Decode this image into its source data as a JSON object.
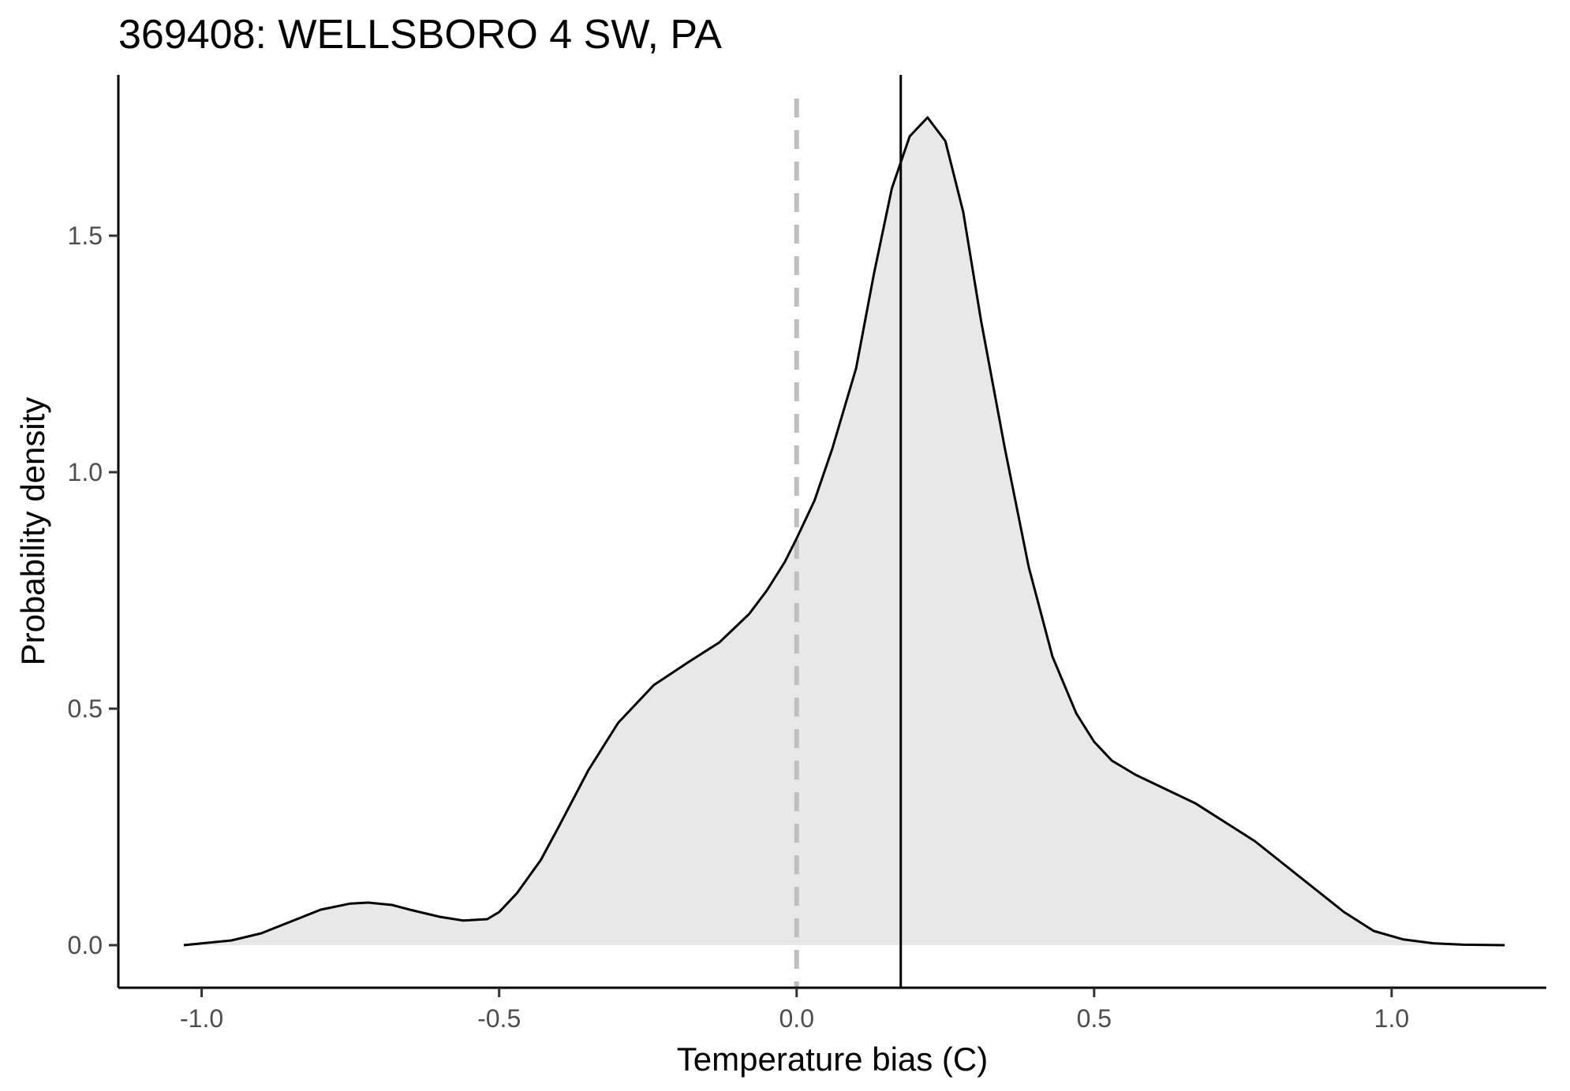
{
  "chart_data": {
    "type": "area",
    "title": "369408: WELLSBORO 4 SW, PA",
    "xlabel": "Temperature bias (C)",
    "ylabel": "Probability density",
    "xlim": [
      -1.14,
      1.26
    ],
    "ylim": [
      -0.09,
      1.84
    ],
    "x_ticks": [
      {
        "value": -1.0,
        "label": "-1.0"
      },
      {
        "value": -0.5,
        "label": "-0.5"
      },
      {
        "value": 0.0,
        "label": "0.0"
      },
      {
        "value": 0.5,
        "label": "0.5"
      },
      {
        "value": 1.0,
        "label": "1.0"
      }
    ],
    "y_ticks": [
      {
        "value": 0.0,
        "label": "0.0"
      },
      {
        "value": 0.5,
        "label": "0.5"
      },
      {
        "value": 1.0,
        "label": "1.0"
      },
      {
        "value": 1.5,
        "label": "1.5"
      }
    ],
    "grid": false,
    "legend": "none",
    "series": [
      {
        "x": [
          -1.03,
          -0.95,
          -0.9,
          -0.85,
          -0.8,
          -0.75,
          -0.72,
          -0.68,
          -0.65,
          -0.6,
          -0.56,
          -0.52,
          -0.5,
          -0.47,
          -0.43,
          -0.4,
          -0.35,
          -0.3,
          -0.27,
          -0.24,
          -0.21,
          -0.18,
          -0.13,
          -0.08,
          -0.05,
          -0.02,
          0.0,
          0.03,
          0.06,
          0.1,
          0.13,
          0.16,
          0.19,
          0.22,
          0.25,
          0.28,
          0.31,
          0.35,
          0.39,
          0.43,
          0.47,
          0.5,
          0.53,
          0.57,
          0.62,
          0.67,
          0.72,
          0.77,
          0.82,
          0.87,
          0.92,
          0.97,
          1.02,
          1.07,
          1.12,
          1.19
        ],
        "y": [
          0.0,
          0.01,
          0.025,
          0.05,
          0.075,
          0.088,
          0.09,
          0.085,
          0.075,
          0.06,
          0.052,
          0.055,
          0.07,
          0.11,
          0.18,
          0.25,
          0.37,
          0.47,
          0.51,
          0.55,
          0.575,
          0.6,
          0.64,
          0.7,
          0.75,
          0.81,
          0.86,
          0.94,
          1.05,
          1.22,
          1.42,
          1.6,
          1.71,
          1.75,
          1.7,
          1.55,
          1.32,
          1.05,
          0.8,
          0.61,
          0.49,
          0.43,
          0.39,
          0.36,
          0.33,
          0.3,
          0.26,
          0.22,
          0.17,
          0.12,
          0.07,
          0.03,
          0.012,
          0.004,
          0.001,
          0.0
        ],
        "fill": "#e8e8e8",
        "stroke": "#000000"
      }
    ],
    "reference_lines": [
      {
        "x": 0.0,
        "style": "dashed",
        "color": "#bfbfbf"
      },
      {
        "x": 0.175,
        "style": "solid",
        "color": "#000000"
      }
    ]
  }
}
